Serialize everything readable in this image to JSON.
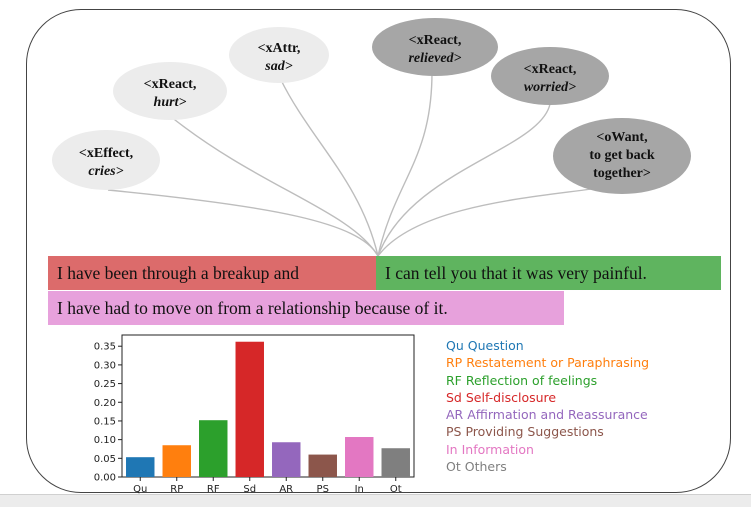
{
  "comet": [
    {
      "relation": "<xEffect,",
      "value": "cries>",
      "fill": "#ececec"
    },
    {
      "relation": "<xReact,",
      "value": "hurt>",
      "fill": "#ececec"
    },
    {
      "relation": "<xAttr,",
      "value": "sad>",
      "fill": "#ececec"
    },
    {
      "relation": "<xReact,",
      "value": "relieved>",
      "fill": "#a6a6a6"
    },
    {
      "relation": "<xReact,",
      "value": "worried>",
      "fill": "#a6a6a6"
    },
    {
      "relation": "<oWant,",
      "value": "to get back",
      "value2": "together>",
      "fill": "#a6a6a6"
    }
  ],
  "sentences": {
    "seg1": "I have been through a breakup and",
    "seg2": "I can tell you that it was very painful.",
    "seg3": "I have had to move on from a relationship because of it.",
    "colors": {
      "seg1": "#dc6b6b",
      "seg2": "#5fb45f",
      "seg3": "#e7a1dc"
    }
  },
  "chart_data": {
    "type": "bar",
    "categories": [
      "Qu",
      "RP",
      "RF",
      "Sd",
      "AR",
      "PS",
      "In",
      "Ot"
    ],
    "values": [
      0.053,
      0.085,
      0.152,
      0.362,
      0.093,
      0.06,
      0.107,
      0.077
    ],
    "colors": [
      "#1f77b4",
      "#ff7f0e",
      "#2ca02c",
      "#d62728",
      "#9467bd",
      "#8c564b",
      "#e377c2",
      "#7f7f7f"
    ],
    "yticks": [
      "0.00",
      "0.05",
      "0.10",
      "0.15",
      "0.20",
      "0.25",
      "0.30",
      "0.35"
    ],
    "ylim": [
      0,
      0.38
    ],
    "xlabel": "",
    "ylabel": "",
    "title": ""
  },
  "legend": [
    {
      "code": "Qu",
      "label": "Question",
      "color": "#1f77b4"
    },
    {
      "code": "RP",
      "label": "Restatement or Paraphrasing",
      "color": "#ff7f0e"
    },
    {
      "code": "RF",
      "label": "Reflection of feelings",
      "color": "#2ca02c"
    },
    {
      "code": "Sd",
      "label": "Self-disclosure",
      "color": "#d62728"
    },
    {
      "code": "AR",
      "label": "Affirmation and Reassurance",
      "color": "#9467bd"
    },
    {
      "code": "PS",
      "label": "Providing Suggestions",
      "color": "#8c564b"
    },
    {
      "code": "In",
      "label": "Information",
      "color": "#e377c2"
    },
    {
      "code": "Ot",
      "label": "Others",
      "color": "#7f7f7f"
    }
  ]
}
